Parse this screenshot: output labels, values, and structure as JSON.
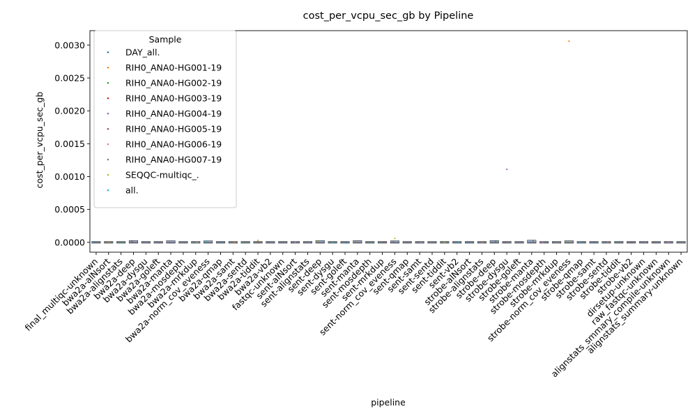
{
  "chart_data": {
    "type": "scatter",
    "title": "cost_per_vcpu_sec_gb by Pipeline",
    "xlabel": "pipeline",
    "ylabel": "cost_per_vcpu_sec_gb",
    "ylim": [
      -0.00015,
      0.00322
    ],
    "yticks": [
      0.0,
      0.0005,
      0.001,
      0.0015,
      0.002,
      0.0025,
      0.003
    ],
    "ytick_labels": [
      "0.0000",
      "0.0005",
      "0.0010",
      "0.0015",
      "0.0020",
      "0.0025",
      "0.0030"
    ],
    "grid": false,
    "legend": {
      "title": "Sample",
      "placement": "top-left"
    },
    "categories": [
      "final_multiqc-unknown",
      "bwa2a-alNsort",
      "bwa2a-alignstats",
      "bwa2a-deep",
      "bwa2a-dysgu",
      "bwa2a-goleft",
      "bwa2a-manta",
      "bwa2a-mosdepth",
      "bwa2a-mrkdup",
      "bwa2a-norm_cov_eveness",
      "bwa2a-qmap",
      "bwa2a-samt",
      "bwa2a-sentd",
      "bwa2a-tiddit",
      "bwa2a-vb2",
      "fastqc-unknown",
      "sent-alNsort",
      "sent-alignstats",
      "sent-deep",
      "sent-dysgu",
      "sent-goleft",
      "sent-manta",
      "sent-mosdepth",
      "sent-mrkdup",
      "sent-norm_cov_eveness",
      "sent-qmap",
      "sent-samt",
      "sent-sentd",
      "sent-tiddit",
      "sent-vb2",
      "strobe-alNsort",
      "strobe-alignstats",
      "strobe-deep",
      "strobe-dysgu",
      "strobe-goleft",
      "strobe-manta",
      "strobe-mosdepth",
      "strobe-mrkdup",
      "strobe-norm_cov_eveness",
      "strobe-qmap",
      "strobe-samt",
      "strobe-sentd",
      "strobe-tiddit",
      "strobe-vb2",
      "dirsetup-unknown",
      "raw_fastqc-unknown",
      "alignstats_smmary_compile-unknown",
      "alignstats_summary-unknown"
    ],
    "series": [
      {
        "name": "DAY_all.",
        "color": "#1f77b4"
      },
      {
        "name": "RIH0_ANA0-HG001-19",
        "color": "#ff7f0e"
      },
      {
        "name": "RIH0_ANA0-HG002-19",
        "color": "#2ca02c"
      },
      {
        "name": "RIH0_ANA0-HG003-19",
        "color": "#d62728"
      },
      {
        "name": "RIH0_ANA0-HG004-19",
        "color": "#9467bd"
      },
      {
        "name": "RIH0_ANA0-HG005-19",
        "color": "#8c564b"
      },
      {
        "name": "RIH0_ANA0-HG006-19",
        "color": "#e377c2"
      },
      {
        "name": "RIH0_ANA0-HG007-19",
        "color": "#7f7f7f"
      },
      {
        "name": "SEQQC-multiqc_.",
        "color": "#bcbd22"
      },
      {
        "name": "all.",
        "color": "#17becf"
      }
    ],
    "baseline_value": 0.0,
    "near_zero_values": [
      0.0,
      0.0,
      0.0,
      1.5e-05,
      0.0,
      0.0,
      1.2e-05,
      0.0,
      0.0,
      1e-05,
      0.0,
      0.0,
      0.0,
      0.0,
      0.0,
      0.0,
      0.0,
      0.0,
      1.5e-05,
      0.0,
      0.0,
      1.5e-05,
      0.0,
      0.0,
      1e-05,
      0.0,
      0.0,
      0.0,
      0.0,
      0.0,
      0.0,
      0.0,
      1.5e-05,
      0.0,
      0.0,
      2e-05,
      0.0,
      0.0,
      1.2e-05,
      0.0,
      0.0,
      0.0,
      0.0,
      0.0,
      0.0,
      0.0,
      0.0,
      0.0
    ],
    "outliers": [
      {
        "category": "strobe-norm_cov_eveness",
        "series": "RIH0_ANA0-HG001-19",
        "value": 0.00306
      },
      {
        "category": "strobe-dysgu",
        "series": "RIH0_ANA0-HG004-19",
        "value": 0.00111
      },
      {
        "category": "sent-norm_cov_eveness",
        "series": "SEQQC-multiqc_.",
        "value": 6e-05
      },
      {
        "category": "bwa2a-tiddit",
        "series": "SEQQC-multiqc_.",
        "value": 3e-05
      }
    ]
  }
}
